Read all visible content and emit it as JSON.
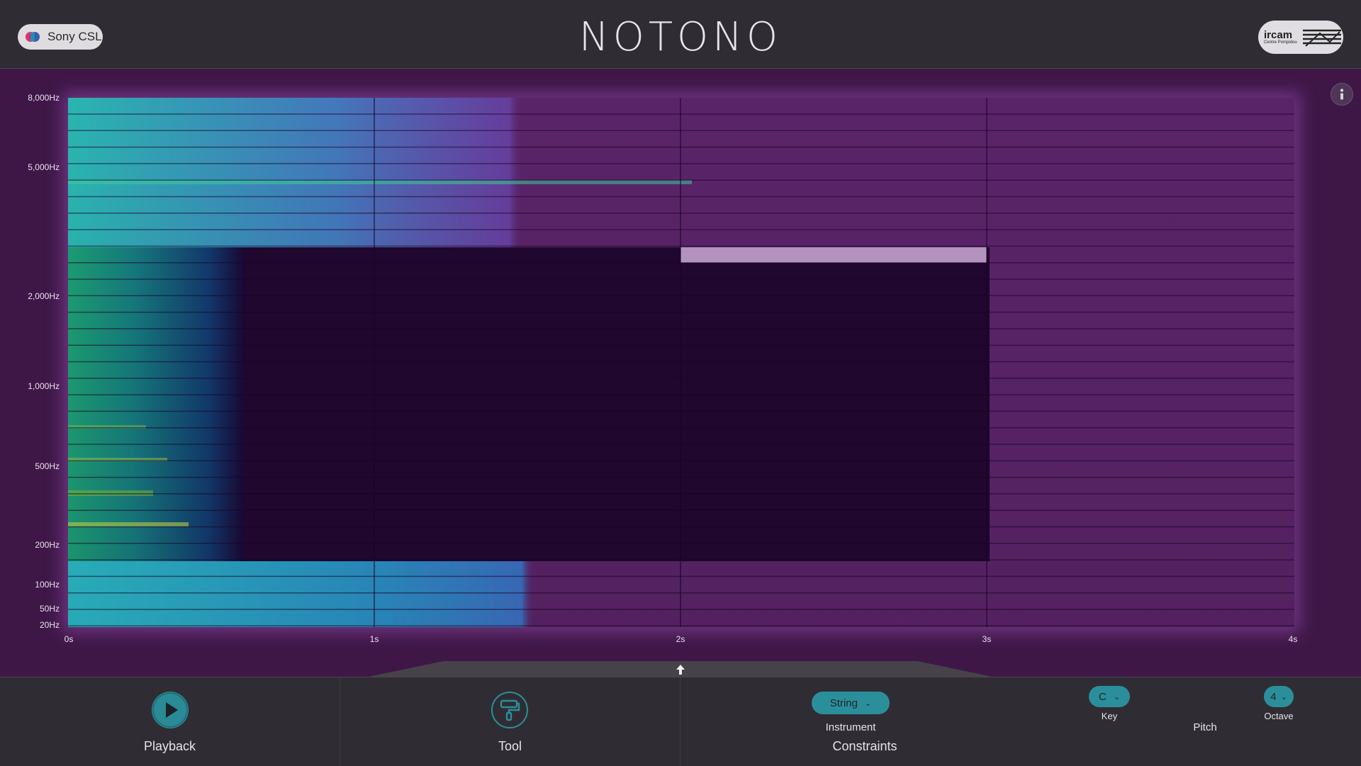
{
  "header": {
    "sony_label": "Sony CSL",
    "app_title": "NOTONO",
    "ircam_word": "ircam",
    "ircam_sub": "Centre Pompidou"
  },
  "spectrogram": {
    "frequency_labels": [
      "8,000Hz",
      "5,000Hz",
      "2,000Hz",
      "1,000Hz",
      "500Hz",
      "200Hz",
      "100Hz",
      "50Hz",
      "20Hz"
    ],
    "time_labels": [
      "0s",
      "1s",
      "2s",
      "3s",
      "4s"
    ],
    "info_icon": "info-icon"
  },
  "controls": {
    "playback_label": "Playback",
    "tool_label": "Tool",
    "instrument_value": "String",
    "instrument_label": "Instrument",
    "constraints_label": "Constraints",
    "key_value": "C",
    "key_label": "Key",
    "pitch_label": "Pitch",
    "octave_value": "4",
    "octave_label": "Octave"
  },
  "colors": {
    "accent": "#2b8f9b",
    "background_plot": "#3e1747",
    "selection_highlight": "#b596c2"
  }
}
